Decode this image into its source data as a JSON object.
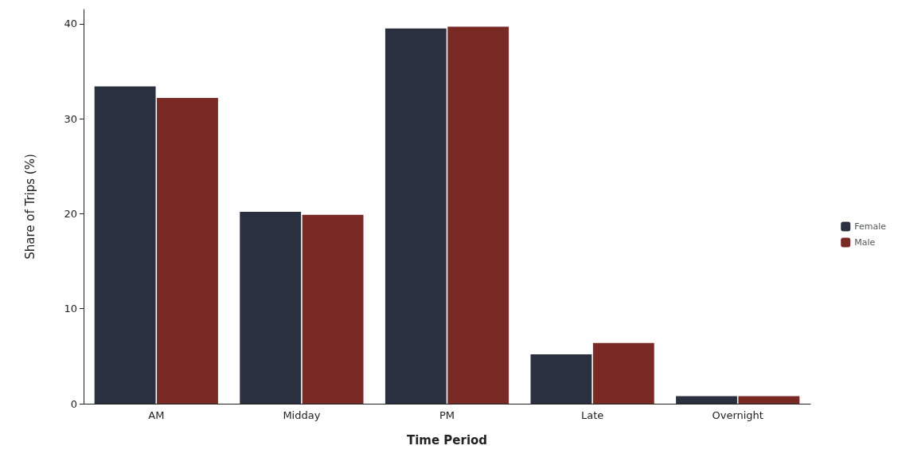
{
  "chart_data": {
    "type": "bar",
    "xlabel": "Time Period",
    "ylabel": "Share of Trips (%)",
    "categories": [
      "AM",
      "Midday",
      "PM",
      "Late",
      "Overnight"
    ],
    "series": [
      {
        "name": "Female",
        "color": "#2b3040",
        "values": [
          33.4,
          20.2,
          39.5,
          5.2,
          0.8
        ]
      },
      {
        "name": "Male",
        "color": "#7a2a24",
        "values": [
          32.2,
          19.9,
          39.7,
          6.4,
          0.8
        ]
      }
    ],
    "ylim": [
      0,
      41.5
    ],
    "yticks": [
      0,
      10,
      20,
      30,
      40
    ],
    "grid": false,
    "legend": "right"
  }
}
